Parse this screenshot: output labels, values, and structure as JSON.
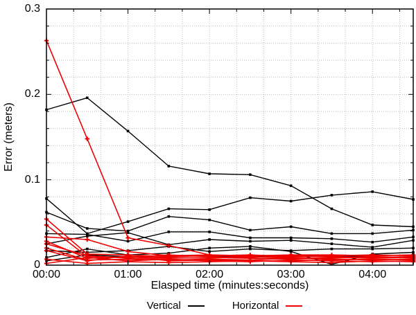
{
  "page": {
    "background": "#ffffff"
  },
  "chart_data": {
    "type": "line",
    "title": "",
    "xlabel": "Elasped time (minutes:seconds)",
    "ylabel": "Error (meters)",
    "x_range_seconds": [
      0,
      270
    ],
    "x_major_ticks": [
      {
        "t": 0,
        "label": "00:00"
      },
      {
        "t": 60,
        "label": "01:00"
      },
      {
        "t": 120,
        "label": "02:00"
      },
      {
        "t": 180,
        "label": "03:00"
      },
      {
        "t": 240,
        "label": "04:00"
      }
    ],
    "x_minor_step_seconds": 20,
    "ylim": [
      0,
      0.3
    ],
    "y_major_ticks": [
      {
        "v": 0,
        "label": "0"
      },
      {
        "v": 0.1,
        "label": "0.1"
      },
      {
        "v": 0.2,
        "label": "0.2"
      },
      {
        "v": 0.3,
        "label": "0.3"
      }
    ],
    "y_minor_step": 0.02,
    "grid": {
      "shown": true,
      "style": "dotted",
      "color": "#bcbcbc",
      "at": "every minor tick"
    },
    "legend": {
      "position": "below-x-axis",
      "items": [
        {
          "label": "Vertical",
          "color": "#000000"
        },
        {
          "label": "Horizontal",
          "color": "#ee0000"
        }
      ]
    },
    "sample_times": [
      "00:00",
      "00:30",
      "01:00",
      "01:30",
      "02:00",
      "02:30",
      "03:00",
      "03:30",
      "04:00",
      "04:30"
    ],
    "sample_seconds": [
      0,
      30,
      60,
      90,
      120,
      150,
      180,
      210,
      240,
      270
    ],
    "series": [
      {
        "name": "vertical-run-1",
        "group": "Vertical",
        "color": "#000000",
        "marker": "square",
        "values": [
          0.182,
          0.196,
          0.157,
          0.116,
          0.107,
          0.106,
          0.093,
          0.066,
          0.047,
          0.045
        ]
      },
      {
        "name": "vertical-run-2",
        "group": "Vertical",
        "color": "#000000",
        "marker": "square",
        "values": [
          0.078,
          0.037,
          0.051,
          0.066,
          0.065,
          0.079,
          0.075,
          0.082,
          0.086,
          0.077
        ]
      },
      {
        "name": "vertical-run-3",
        "group": "Vertical",
        "color": "#000000",
        "marker": "square",
        "values": [
          0.062,
          0.043,
          0.04,
          0.057,
          0.053,
          0.041,
          0.045,
          0.037,
          0.037,
          0.041
        ]
      },
      {
        "name": "vertical-run-4",
        "group": "Vertical",
        "color": "#000000",
        "marker": "square",
        "values": [
          0.037,
          0.036,
          0.028,
          0.039,
          0.039,
          0.032,
          0.032,
          0.031,
          0.027,
          0.033
        ]
      },
      {
        "name": "vertical-run-5",
        "group": "Vertical",
        "color": "#000000",
        "marker": "square",
        "values": [
          0.025,
          0.034,
          0.038,
          0.024,
          0.03,
          0.028,
          0.029,
          0.025,
          0.021,
          0.029
        ]
      },
      {
        "name": "vertical-run-6",
        "group": "Vertical",
        "color": "#000000",
        "marker": "square",
        "values": [
          0.017,
          0.015,
          0.017,
          0.022,
          0.016,
          0.019,
          0.017,
          0.019,
          0.019,
          0.02
        ]
      },
      {
        "name": "vertical-run-7",
        "group": "Vertical",
        "color": "#000000",
        "marker": "square",
        "values": [
          0.009,
          0.019,
          0.012,
          0.014,
          0.02,
          0.022,
          0.016,
          0.001,
          0.013,
          0.015
        ]
      },
      {
        "name": "vertical-run-8",
        "group": "Vertical",
        "color": "#000000",
        "marker": "square",
        "values": [
          0.005,
          0.012,
          0.01,
          0.011,
          0.011,
          0.01,
          0.012,
          0.01,
          0.011,
          0.012
        ]
      },
      {
        "name": "horizontal-run-1",
        "group": "Horizontal",
        "color": "#ee0000",
        "marker": "plus",
        "values": [
          0.263,
          0.148,
          0.032,
          0.023,
          0.012,
          0.01,
          0.008,
          0.009,
          0.01,
          0.009
        ]
      },
      {
        "name": "horizontal-run-2",
        "group": "Horizontal",
        "color": "#ee0000",
        "marker": "plus",
        "values": [
          0.054,
          0.013,
          0.012,
          0.01,
          0.011,
          0.012,
          0.01,
          0.011,
          0.012,
          0.011
        ]
      },
      {
        "name": "horizontal-run-3",
        "group": "Horizontal",
        "color": "#ee0000",
        "marker": "plus",
        "values": [
          0.047,
          0.01,
          0.009,
          0.012,
          0.01,
          0.009,
          0.011,
          0.01,
          0.009,
          0.01
        ]
      },
      {
        "name": "horizontal-run-4",
        "group": "Horizontal",
        "color": "#ee0000",
        "marker": "plus",
        "values": [
          0.033,
          0.03,
          0.016,
          0.011,
          0.012,
          0.011,
          0.012,
          0.012,
          0.011,
          0.012
        ]
      },
      {
        "name": "horizontal-run-5",
        "group": "Horizontal",
        "color": "#ee0000",
        "marker": "plus",
        "values": [
          0.028,
          0.008,
          0.01,
          0.009,
          0.008,
          0.01,
          0.009,
          0.008,
          0.01,
          0.008
        ]
      },
      {
        "name": "horizontal-run-6",
        "group": "Horizontal",
        "color": "#ee0000",
        "marker": "plus",
        "values": [
          0.025,
          0.011,
          0.008,
          0.008,
          0.009,
          0.008,
          0.007,
          0.009,
          0.008,
          0.009
        ]
      },
      {
        "name": "horizontal-run-7",
        "group": "Horizontal",
        "color": "#ee0000",
        "marker": "plus",
        "values": [
          0.02,
          0.006,
          0.007,
          0.006,
          0.007,
          0.006,
          0.008,
          0.007,
          0.006,
          0.007
        ]
      },
      {
        "name": "horizontal-run-8",
        "group": "Horizontal",
        "color": "#ee0000",
        "marker": "plus",
        "values": [
          0.017,
          0.005,
          0.011,
          0.005,
          0.006,
          0.005,
          0.005,
          0.006,
          0.007,
          0.006
        ]
      },
      {
        "name": "horizontal-run-9",
        "group": "Horizontal",
        "color": "#ee0000",
        "marker": "plus",
        "values": [
          0.007,
          0.002,
          0.004,
          0.003,
          0.004,
          0.005,
          0.004,
          0.003,
          0.005,
          0.004
        ]
      },
      {
        "name": "horizontal-run-10",
        "group": "Horizontal",
        "color": "#ee0000",
        "marker": "plus",
        "values": [
          0.002,
          0.009,
          0.005,
          0.007,
          0.005,
          0.004,
          0.006,
          0.005,
          0.004,
          0.005
        ]
      }
    ]
  }
}
